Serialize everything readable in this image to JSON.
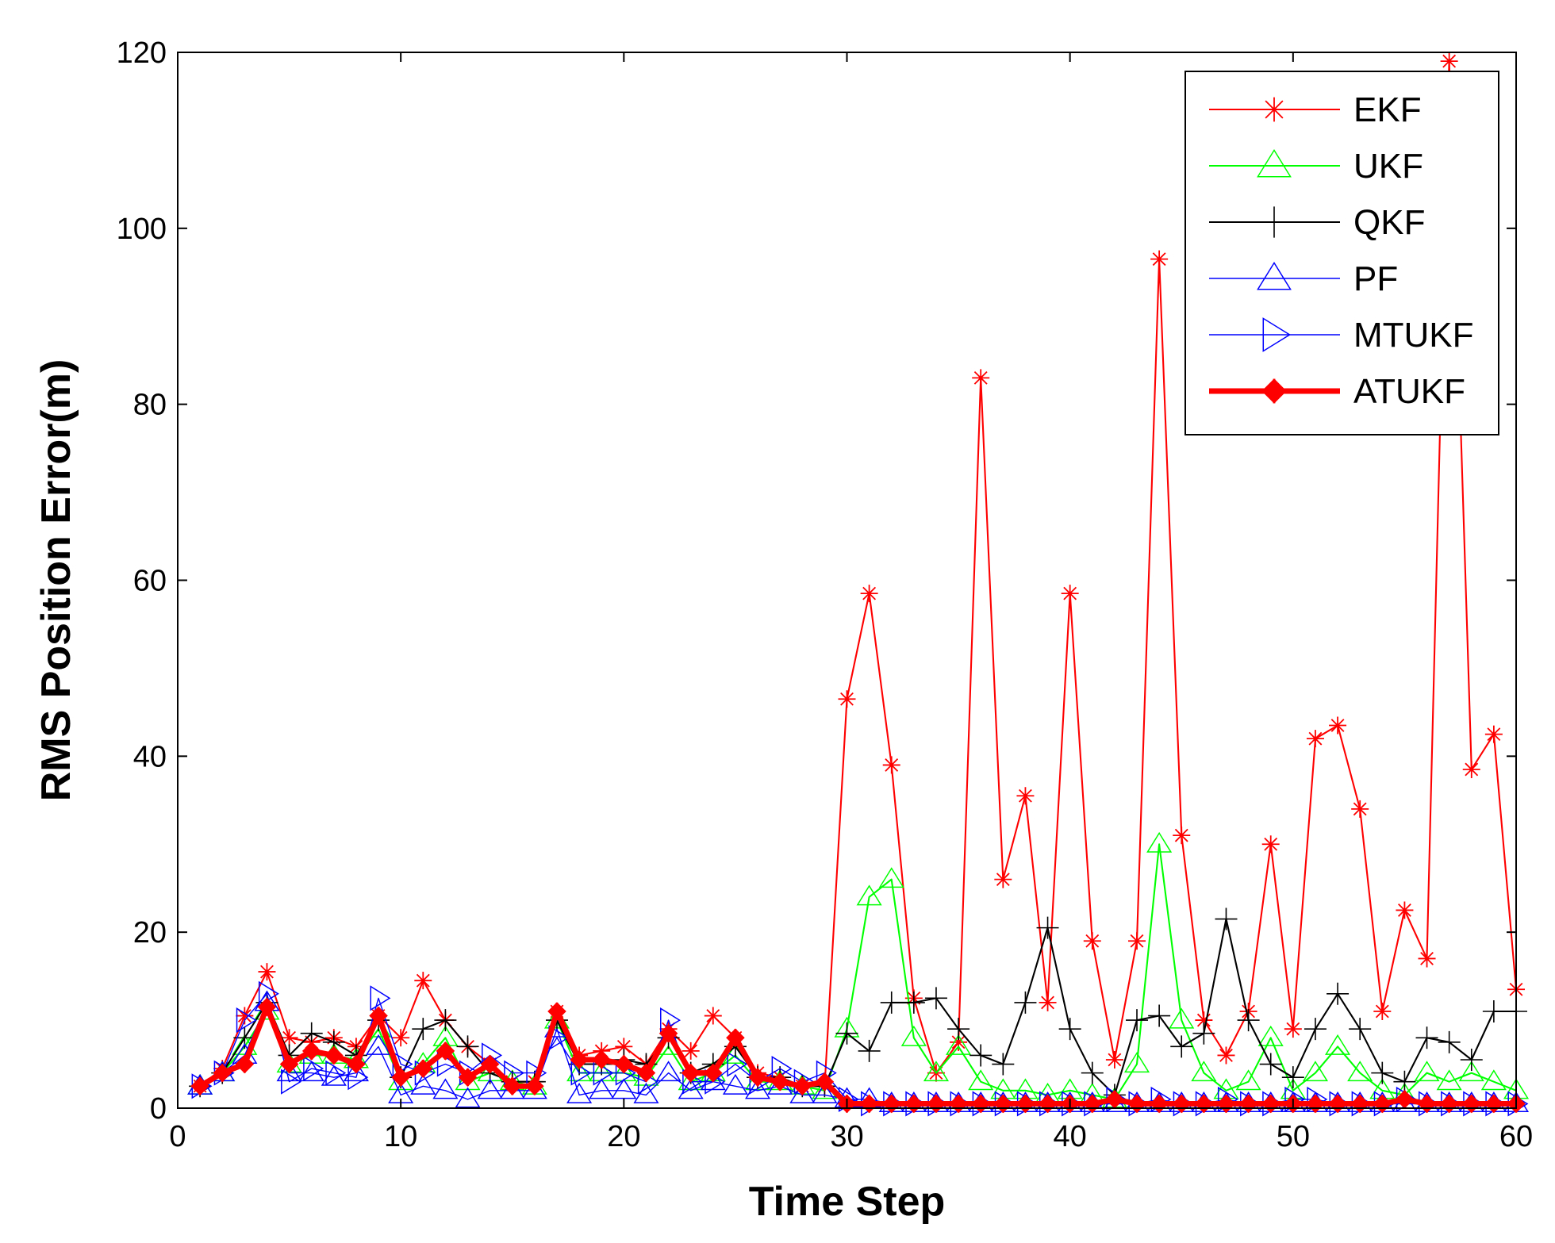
{
  "chart_data": {
    "type": "line",
    "title": "",
    "xlabel": "Time Step",
    "ylabel": "RMS Position Error(m)",
    "xlim": [
      0,
      60
    ],
    "ylim": [
      0,
      120
    ],
    "xticks": [
      0,
      10,
      20,
      30,
      40,
      50,
      60
    ],
    "yticks": [
      0,
      20,
      40,
      60,
      80,
      100,
      120
    ],
    "grid": false,
    "legend_position": "top-right",
    "x": [
      1,
      2,
      3,
      4,
      5,
      6,
      7,
      8,
      9,
      10,
      11,
      12,
      13,
      14,
      15,
      16,
      17,
      18,
      19,
      20,
      21,
      22,
      23,
      24,
      25,
      26,
      27,
      28,
      29,
      30,
      31,
      32,
      33,
      34,
      35,
      36,
      37,
      38,
      39,
      40,
      41,
      42,
      43,
      44,
      45,
      46,
      47,
      48,
      49,
      50,
      51,
      52,
      53,
      54,
      55,
      56,
      57,
      58,
      59,
      60
    ],
    "series": [
      {
        "name": "EKF",
        "color": "#ff0000",
        "marker": "star",
        "line_width": 1.5,
        "values": [
          2.5,
          4.5,
          10.5,
          15.5,
          8,
          7.5,
          8,
          7,
          10.5,
          8,
          14.5,
          10,
          7,
          5,
          3,
          3,
          11,
          6,
          6.5,
          7,
          5,
          9,
          6.5,
          10.5,
          8,
          4,
          3.5,
          2.5,
          2.5,
          46.5,
          58.5,
          39,
          12.5,
          4,
          7.5,
          83,
          26,
          35.5,
          12,
          58.5,
          19,
          5.5,
          19,
          96.5,
          31,
          10,
          6,
          11,
          30,
          9,
          42,
          43.5,
          34,
          11,
          22.5,
          17,
          119,
          38.5,
          42.5,
          13.5
        ]
      },
      {
        "name": "UKF",
        "color": "#00ff00",
        "marker": "triangle-up",
        "line_width": 1.5,
        "values": [
          2.5,
          4,
          7,
          11,
          5,
          6,
          6,
          5.5,
          9,
          3,
          5,
          8,
          3,
          4,
          3,
          2.5,
          10,
          4,
          4,
          4,
          3.5,
          7,
          3,
          4,
          6,
          3,
          3,
          2.5,
          2,
          9,
          24,
          26,
          8,
          4,
          7,
          3,
          2,
          2,
          1.5,
          2,
          1.5,
          1,
          5,
          30,
          10,
          4,
          2,
          3,
          8,
          2,
          4,
          7,
          4,
          2,
          1.5,
          4,
          3,
          4,
          3,
          2
        ]
      },
      {
        "name": "QKF",
        "color": "#000000",
        "marker": "plus",
        "line_width": 1.5,
        "values": [
          2.5,
          4,
          8,
          12,
          6,
          8.5,
          7.5,
          6,
          10,
          3.5,
          9,
          10,
          7,
          4,
          3,
          3,
          10,
          5,
          5,
          5.5,
          5,
          8,
          4,
          5,
          7,
          3.5,
          3.5,
          2.5,
          2.5,
          8.5,
          6.5,
          12,
          12,
          12.5,
          9,
          6,
          5,
          12,
          20.5,
          9,
          4,
          1.5,
          10,
          10.5,
          7,
          8.5,
          21.5,
          10,
          5,
          3.5,
          9,
          13,
          9,
          4,
          3,
          8,
          7.5,
          5.5,
          11,
          11
        ]
      },
      {
        "name": "PF",
        "color": "#0000ff",
        "marker": "triangle-up",
        "line_width": 1,
        "values": [
          2.5,
          4,
          6,
          12,
          4,
          4,
          3.5,
          4,
          7,
          1.5,
          2.5,
          2,
          1,
          2,
          2,
          2,
          9,
          1.5,
          2,
          2,
          1.5,
          4,
          2,
          3,
          2.5,
          2,
          2.5,
          1.5,
          1.5,
          1,
          1,
          0.5,
          0.5,
          0.5,
          0.5,
          0.5,
          0.5,
          0.5,
          0.5,
          0.5,
          0.5,
          0.5,
          0.5,
          0.5,
          0.5,
          0.5,
          0.5,
          0.5,
          0.5,
          0.5,
          0.5,
          0.5,
          0.5,
          0.5,
          0.5,
          0.5,
          0.5,
          0.5,
          0.5,
          0.5
        ]
      },
      {
        "name": "MTUKF",
        "color": "#0000ff",
        "marker": "triangle-right",
        "line_width": 1,
        "values": [
          2.5,
          4,
          10,
          13,
          3,
          4.5,
          4,
          3.5,
          12.5,
          5,
          4,
          5,
          4,
          6,
          4,
          4,
          8,
          4,
          4,
          4,
          3,
          10,
          3,
          3,
          5,
          3,
          4.5,
          3,
          4,
          1,
          0.5,
          0.5,
          0.5,
          0.5,
          0.5,
          0.5,
          0.5,
          0.5,
          0.5,
          0.5,
          0.5,
          1,
          0.5,
          1,
          0.5,
          0.5,
          1,
          0.5,
          0.5,
          1,
          1,
          0.5,
          0.5,
          0.5,
          1,
          0.5,
          0.5,
          0.5,
          0.5,
          0.5
        ]
      },
      {
        "name": "ATUKF",
        "color": "#ff0000",
        "marker": "filled-diamond",
        "line_width": 5,
        "values": [
          2.5,
          4,
          5,
          11.5,
          5,
          6.5,
          6,
          5,
          10.5,
          3.5,
          4.5,
          6.5,
          3.5,
          5,
          2.5,
          2.5,
          11,
          5.5,
          5.5,
          5,
          4,
          8.5,
          4,
          4,
          8,
          3.5,
          3,
          2.5,
          3,
          0.5,
          0.5,
          0.5,
          0.5,
          0.5,
          0.5,
          0.5,
          0.5,
          0.5,
          0.5,
          0.5,
          0.5,
          1,
          0.5,
          0.5,
          0.5,
          0.5,
          0.5,
          0.5,
          0.5,
          0.5,
          0.5,
          0.5,
          0.5,
          0.5,
          1,
          0.5,
          0.5,
          0.5,
          0.5,
          0.5
        ]
      }
    ]
  }
}
